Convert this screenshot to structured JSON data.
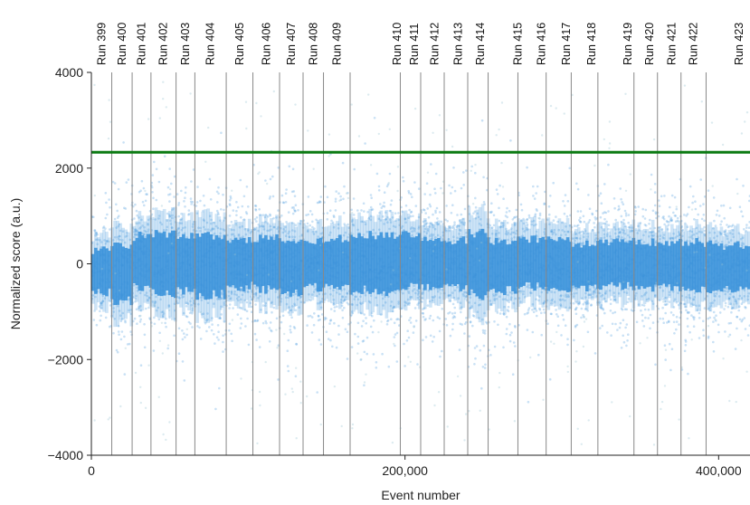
{
  "chart_data": {
    "type": "scatter",
    "title": "",
    "xlabel": "Event number",
    "ylabel": "Normalized score (a.u.)",
    "xlim": [
      0,
      420000
    ],
    "ylim": [
      -4000,
      4000
    ],
    "x_ticks": [
      0,
      200000,
      400000
    ],
    "x_tick_labels": [
      "0",
      "200,000",
      "400,000"
    ],
    "y_ticks": [
      -4000,
      -2000,
      0,
      2000,
      4000
    ],
    "y_tick_labels": [
      "−4000",
      "−2000",
      "0",
      "2000",
      "4000"
    ],
    "threshold": 2330,
    "colors": {
      "points": "#3d95dc",
      "threshold": "#0b7a12",
      "run_boundary": "#888888"
    },
    "run_boundaries": [
      13000,
      26000,
      38000,
      54000,
      66000,
      86000,
      103000,
      120000,
      135000,
      148000,
      165000,
      197000,
      210000,
      225000,
      240000,
      253000,
      272000,
      290000,
      306000,
      323000,
      346000,
      361000,
      376000,
      392000
    ],
    "runs": [
      {
        "label": "Run 399",
        "x": 6500
      },
      {
        "label": "Run 400",
        "x": 19500
      },
      {
        "label": "Run 401",
        "x": 32000
      },
      {
        "label": "Run 402",
        "x": 46000
      },
      {
        "label": "Run 403",
        "x": 60000
      },
      {
        "label": "Run 404",
        "x": 76000
      },
      {
        "label": "Run 405",
        "x": 94500
      },
      {
        "label": "Run 406",
        "x": 111500
      },
      {
        "label": "Run 407",
        "x": 127500
      },
      {
        "label": "Run 408",
        "x": 141500
      },
      {
        "label": "Run 409",
        "x": 156500
      },
      {
        "label": "Run 410",
        "x": 195000
      },
      {
        "label": "Run 411",
        "x": 206000
      },
      {
        "label": "Run 412",
        "x": 219000
      },
      {
        "label": "Run 413",
        "x": 234000
      },
      {
        "label": "Run 414",
        "x": 248000
      },
      {
        "label": "Run 415",
        "x": 272000
      },
      {
        "label": "Run 416",
        "x": 287000
      },
      {
        "label": "Run 417",
        "x": 303000
      },
      {
        "label": "Run 418",
        "x": 319000
      },
      {
        "label": "Run 419",
        "x": 342000
      },
      {
        "label": "Run 420",
        "x": 356000
      },
      {
        "label": "Run 421",
        "x": 370000
      },
      {
        "label": "Run 422",
        "x": 384000
      },
      {
        "label": "Run 423",
        "x": 413000
      }
    ],
    "series": [
      {
        "segments": [
          {
            "x0": 0,
            "x1": 13000,
            "center": -150,
            "spread": 450
          },
          {
            "x0": 13000,
            "x1": 26000,
            "center": -200,
            "spread": 550
          },
          {
            "x0": 26000,
            "x1": 38000,
            "center": 50,
            "spread": 520
          },
          {
            "x0": 38000,
            "x1": 54000,
            "center": 0,
            "spread": 600
          },
          {
            "x0": 54000,
            "x1": 66000,
            "center": 0,
            "spread": 560
          },
          {
            "x0": 66000,
            "x1": 86000,
            "center": -50,
            "spread": 600
          },
          {
            "x0": 86000,
            "x1": 103000,
            "center": 0,
            "spread": 480
          },
          {
            "x0": 103000,
            "x1": 120000,
            "center": 0,
            "spread": 520
          },
          {
            "x0": 120000,
            "x1": 135000,
            "center": -80,
            "spread": 540
          },
          {
            "x0": 135000,
            "x1": 148000,
            "center": 0,
            "spread": 480
          },
          {
            "x0": 148000,
            "x1": 165000,
            "center": 20,
            "spread": 520
          },
          {
            "x0": 165000,
            "x1": 197000,
            "center": 0,
            "spread": 560
          },
          {
            "x0": 197000,
            "x1": 210000,
            "center": 50,
            "spread": 560
          },
          {
            "x0": 210000,
            "x1": 225000,
            "center": 0,
            "spread": 500
          },
          {
            "x0": 225000,
            "x1": 240000,
            "center": 0,
            "spread": 480
          },
          {
            "x0": 240000,
            "x1": 253000,
            "center": 0,
            "spread": 650
          },
          {
            "x0": 253000,
            "x1": 272000,
            "center": -50,
            "spread": 500
          },
          {
            "x0": 272000,
            "x1": 290000,
            "center": 30,
            "spread": 480
          },
          {
            "x0": 290000,
            "x1": 306000,
            "center": -30,
            "spread": 500
          },
          {
            "x0": 306000,
            "x1": 323000,
            "center": -50,
            "spread": 470
          },
          {
            "x0": 323000,
            "x1": 346000,
            "center": 0,
            "spread": 480
          },
          {
            "x0": 346000,
            "x1": 361000,
            "center": -40,
            "spread": 470
          },
          {
            "x0": 361000,
            "x1": 376000,
            "center": -30,
            "spread": 470
          },
          {
            "x0": 376000,
            "x1": 392000,
            "center": -50,
            "spread": 480
          },
          {
            "x0": 392000,
            "x1": 420000,
            "center": -80,
            "spread": 460
          }
        ]
      }
    ]
  }
}
